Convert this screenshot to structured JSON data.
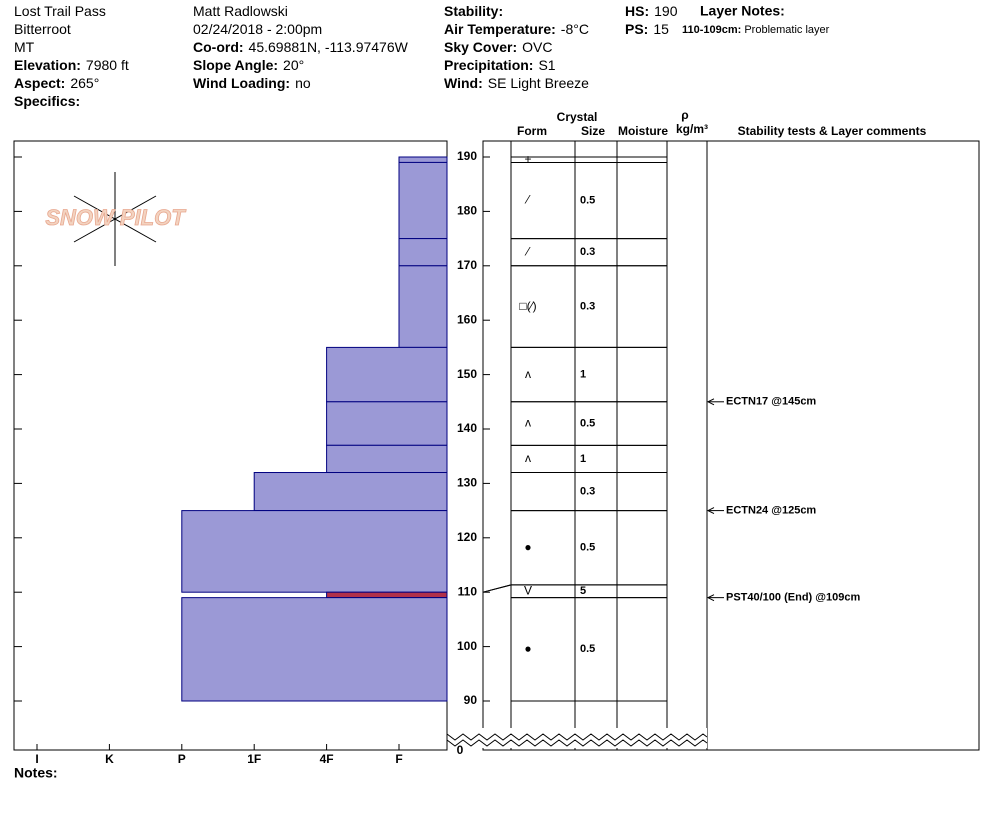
{
  "header": {
    "columns": [
      [
        {
          "value": "Lost Trail Pass"
        },
        {
          "value": "Bitterroot"
        },
        {
          "value": "MT"
        },
        {
          "label": "Elevation:",
          "value": "7980 ft"
        },
        {
          "label": "Aspect:",
          "value": "265°"
        },
        {
          "label": "Specifics:"
        }
      ],
      [
        {
          "value": "Matt Radlowski"
        },
        {
          "value": "02/24/2018 - 2:00pm"
        },
        {
          "label": "Co-ord:",
          "value": "45.69881N, -113.97476W"
        },
        {
          "label": "Slope Angle:",
          "value": "20°"
        },
        {
          "label": "Wind Loading:",
          "value": "no"
        }
      ],
      [
        {
          "label": "Stability:"
        },
        {
          "label": "Air Temperature:",
          "value": "-8°C"
        },
        {
          "label": "Sky Cover:",
          "value": "OVC"
        },
        {
          "label": "Precipitation:",
          "value": "S1"
        },
        {
          "label": "Wind:",
          "value": "SE Light Breeze"
        }
      ],
      [
        {
          "label": "HS:",
          "value": "190"
        },
        {
          "label": "PS:",
          "value": "15"
        }
      ]
    ],
    "layer_notes": {
      "label": "Layer Notes:",
      "notes": [
        {
          "label": "110-109cm:",
          "value": "Problematic layer"
        }
      ]
    }
  },
  "logo": "SNOW PILOT",
  "profile": {
    "hardness_categories": [
      "I",
      "K",
      "P",
      "1F",
      "4F",
      "F"
    ],
    "ylim": [
      90,
      190
    ],
    "yticks": [
      90,
      100,
      110,
      120,
      130,
      140,
      150,
      160,
      170,
      180,
      190
    ],
    "break_value": 0,
    "color": "#9b99d6",
    "layers": [
      {
        "top": 190,
        "bottom": 189,
        "hardness": "F",
        "form": "+"
      },
      {
        "top": 189,
        "bottom": 175,
        "hardness": "F",
        "form": "⁄",
        "size": "0.5"
      },
      {
        "top": 175,
        "bottom": 170,
        "hardness": "F",
        "form": "⁄",
        "size": "0.3"
      },
      {
        "top": 170,
        "bottom": 155,
        "hardness": "F",
        "form": "□(⁄)",
        "size": "0.3"
      },
      {
        "top": 155,
        "bottom": 145,
        "hardness": "4F",
        "form": "ʌ",
        "size": "1"
      },
      {
        "top": 145,
        "bottom": 137,
        "hardness": "4F",
        "form": "ʌ",
        "size": "0.5"
      },
      {
        "top": 137,
        "bottom": 132,
        "hardness": "4F",
        "form": "ʌ",
        "size": "1"
      },
      {
        "top": 132,
        "bottom": 125,
        "hardness": "1F",
        "size": "0.3"
      },
      {
        "top": 125,
        "bottom": 110,
        "hardness": "P",
        "form": "●",
        "size": "0.5"
      },
      {
        "top": 110,
        "bottom": 109,
        "hardness": "4F",
        "form": "V",
        "size": "5",
        "color": "#b0304a"
      },
      {
        "top": 109,
        "bottom": 90,
        "hardness": "P",
        "form": "●",
        "size": "0.5"
      }
    ],
    "tests": [
      {
        "depth": 145,
        "label": "ECTN17 @145cm"
      },
      {
        "depth": 125,
        "label": "ECTN24 @125cm"
      },
      {
        "depth": 109,
        "label": "PST40/100 (End) @109cm"
      }
    ]
  },
  "table_headers": {
    "crystal": "Crystal",
    "form": "Form",
    "size": "Size",
    "moisture": "Moisture",
    "rho": "ρ",
    "density_unit": "kg/m³",
    "comments": "Stability tests & Layer comments"
  },
  "notes_label": "Notes:"
}
